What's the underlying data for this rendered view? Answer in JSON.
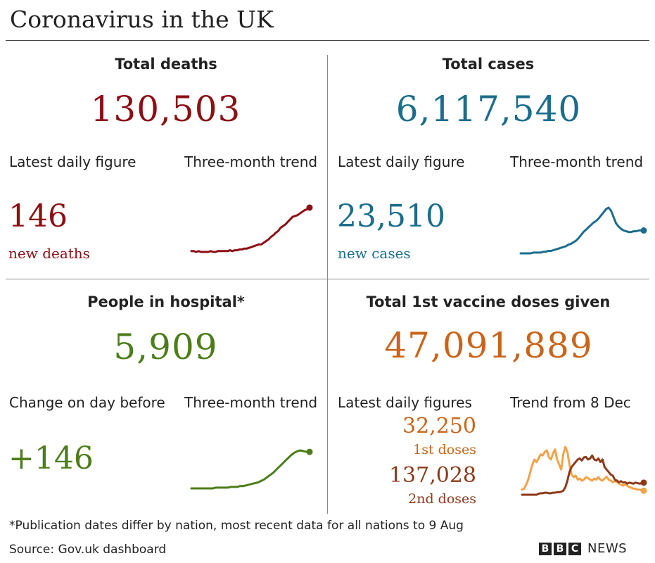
{
  "title": "Coronavirus in the UK",
  "colors": {
    "deaths": "#8b0f14",
    "cases": "#1b6d8c",
    "hospital": "#4c7d1a",
    "first_dose": "#c8651b",
    "first_dose_line": "#f2a24a",
    "second_dose": "#8b3a1a"
  },
  "deaths": {
    "heading": "Total deaths",
    "total": "130,503",
    "latest_label": "Latest daily figure",
    "trend_label": "Three-month trend",
    "latest": "146",
    "latest_unit": "new deaths"
  },
  "cases": {
    "heading": "Total cases",
    "total": "6,117,540",
    "latest_label": "Latest daily figure",
    "trend_label": "Three-month trend",
    "latest": "23,510",
    "latest_unit": "new cases"
  },
  "hospital": {
    "heading": "People in hospital*",
    "total": "5,909",
    "latest_label": "Change on day before",
    "trend_label": "Three-month trend",
    "latest": "+146"
  },
  "vaccine": {
    "heading": "Total 1st vaccine doses given",
    "total": "47,091,889",
    "latest_label": "Latest daily figures",
    "trend_label": "Trend from 8 Dec",
    "first": "32,250",
    "first_unit": "1st doses",
    "second": "137,028",
    "second_unit": "2nd doses"
  },
  "footnote": "*Publication dates differ by nation, most recent data for all nations to 9 Aug",
  "source": "Source: Gov.uk dashboard",
  "logo": {
    "letters": [
      "B",
      "B",
      "C"
    ],
    "word": "NEWS"
  },
  "chart_data": [
    {
      "type": "line",
      "name": "deaths-trend",
      "x": [
        0,
        1,
        2,
        3,
        4,
        5,
        6,
        7,
        8,
        9,
        10,
        11,
        12,
        13,
        14,
        15,
        16,
        17,
        18,
        19,
        20,
        21,
        22,
        23,
        24,
        25,
        26,
        27,
        28,
        29,
        30,
        31,
        32,
        33,
        34,
        35,
        36,
        37,
        38,
        39,
        40,
        41,
        42,
        43,
        44,
        45,
        46,
        47,
        48,
        49
      ],
      "series": [
        {
          "values": [
            3,
            3,
            2,
            3,
            2,
            2,
            2,
            2,
            3,
            2,
            2,
            3,
            3,
            3,
            3,
            3,
            4,
            3,
            4,
            4,
            5,
            5,
            6,
            6,
            7,
            8,
            9,
            10,
            11,
            11,
            13,
            15,
            17,
            20,
            22,
            25,
            27,
            31,
            33,
            35,
            38,
            41,
            44,
            45,
            46,
            48,
            50,
            52,
            53,
            55
          ]
        }
      ]
    },
    {
      "type": "line",
      "name": "cases-trend",
      "x": [
        0,
        1,
        2,
        3,
        4,
        5,
        6,
        7,
        8,
        9,
        10,
        11,
        12,
        13,
        14,
        15,
        16,
        17,
        18,
        19,
        20,
        21,
        22,
        23,
        24,
        25,
        26,
        27,
        28,
        29,
        30,
        31,
        32,
        33,
        34,
        35,
        36,
        37,
        38,
        39,
        40,
        41,
        42,
        43,
        44,
        45,
        46,
        47,
        48,
        49
      ],
      "series": [
        {
          "values": [
            2,
            2,
            2,
            2,
            2,
            3,
            3,
            3,
            3,
            4,
            4,
            5,
            5,
            6,
            7,
            8,
            9,
            10,
            11,
            13,
            14,
            16,
            18,
            21,
            25,
            29,
            32,
            35,
            38,
            41,
            43,
            46,
            50,
            54,
            58,
            60,
            56,
            48,
            40,
            36,
            33,
            31,
            30,
            29,
            29,
            30,
            30,
            31,
            31,
            31
          ]
        }
      ]
    },
    {
      "type": "line",
      "name": "hospital-trend",
      "x": [
        0,
        1,
        2,
        3,
        4,
        5,
        6,
        7,
        8,
        9,
        10,
        11,
        12,
        13,
        14,
        15,
        16,
        17,
        18,
        19,
        20,
        21,
        22,
        23,
        24,
        25,
        26,
        27,
        28,
        29,
        30,
        31,
        32,
        33,
        34,
        35,
        36,
        37,
        38,
        39
      ],
      "series": [
        {
          "values": [
            2,
            2,
            2,
            2,
            2,
            2,
            2,
            2,
            3,
            3,
            3,
            3,
            3,
            4,
            4,
            4,
            5,
            5,
            6,
            7,
            8,
            9,
            10,
            12,
            14,
            17,
            20,
            23,
            27,
            31,
            35,
            39,
            43,
            47,
            50,
            52,
            53,
            52,
            51,
            51
          ]
        }
      ]
    },
    {
      "type": "line",
      "name": "vaccine-trend",
      "x": [
        0,
        1,
        2,
        3,
        4,
        5,
        6,
        7,
        8,
        9,
        10,
        11,
        12,
        13,
        14,
        15,
        16,
        17,
        18,
        19,
        20,
        21,
        22,
        23,
        24,
        25,
        26,
        27,
        28,
        29,
        30,
        31,
        32,
        33,
        34,
        35,
        36,
        37,
        38,
        39,
        40,
        41,
        42,
        43,
        44,
        45,
        46,
        47,
        48,
        49,
        50,
        51,
        52,
        53,
        54,
        55,
        56,
        57,
        58,
        59
      ],
      "series": [
        {
          "name": "1st doses",
          "values": [
            10,
            12,
            20,
            30,
            45,
            60,
            70,
            65,
            72,
            80,
            78,
            85,
            88,
            75,
            70,
            82,
            90,
            70,
            60,
            50,
            80,
            95,
            85,
            60,
            40,
            35,
            38,
            30,
            32,
            28,
            30,
            35,
            33,
            30,
            28,
            32,
            30,
            35,
            30,
            28,
            32,
            36,
            30,
            28,
            25,
            27,
            25,
            22,
            20,
            18,
            20,
            18,
            15,
            14,
            12,
            12,
            10,
            10,
            9,
            8
          ]
        },
        {
          "name": "2nd doses",
          "values": [
            0,
            0,
            0,
            0,
            0,
            0,
            0,
            0,
            2,
            3,
            3,
            4,
            4,
            3,
            3,
            4,
            4,
            5,
            5,
            6,
            8,
            15,
            28,
            45,
            55,
            60,
            65,
            70,
            72,
            68,
            74,
            75,
            70,
            72,
            78,
            70,
            68,
            72,
            65,
            70,
            55,
            50,
            45,
            40,
            38,
            30,
            28,
            25,
            27,
            24,
            25,
            22,
            24,
            23,
            22,
            24,
            23,
            22,
            23,
            24
          ]
        }
      ]
    }
  ]
}
